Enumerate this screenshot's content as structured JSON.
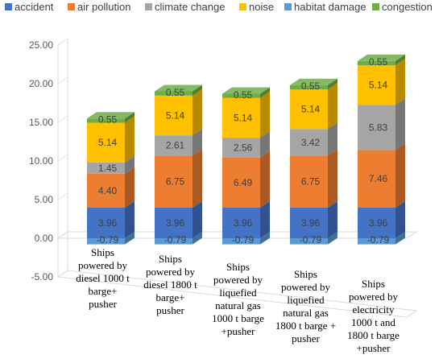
{
  "chart_data": {
    "type": "bar",
    "stacked": true,
    "three_d": true,
    "legend_position": "top",
    "grid": false,
    "ylim": [
      -5,
      25
    ],
    "y_ticks": [
      "-5.00",
      "0.00",
      "5.00",
      "10.00",
      "15.00",
      "20.00",
      "25.00"
    ],
    "categories": [
      [
        "Ships",
        "powered by",
        "diesel 1000 t",
        "barge+",
        "pusher"
      ],
      [
        "Ships",
        "powered by",
        "diesel 1800 t",
        "barge+",
        "pusher"
      ],
      [
        "Ships",
        "powered by",
        "liquefied",
        "natural gas",
        "1000 t barge",
        "+pusher"
      ],
      [
        "Ships",
        "powered by",
        "liquefied",
        "natural gas",
        "1800 t barge +",
        "pusher"
      ],
      [
        "Ships",
        "powered by",
        "electricity",
        "1000 t and",
        "1800 t barge",
        "+pusher"
      ]
    ],
    "series": [
      {
        "name": "habitat damage",
        "color": "#5b9bd5",
        "values": [
          -0.79,
          -0.79,
          -0.79,
          -0.79,
          -0.79
        ],
        "labels": [
          "-0.79",
          "-0.79",
          "-0.79",
          "-0.79",
          "-0.79"
        ]
      },
      {
        "name": "accident",
        "color": "#4472c4",
        "values": [
          3.96,
          3.96,
          3.96,
          3.96,
          3.96
        ],
        "labels": [
          "3.96",
          "3.96",
          "3.96",
          "3.96",
          "3.96"
        ]
      },
      {
        "name": "air pollution",
        "color": "#ed7d31",
        "values": [
          4.4,
          6.75,
          6.49,
          6.75,
          7.46
        ],
        "labels": [
          "4.40",
          "6.75",
          "6.49",
          "6.75",
          "7.46"
        ]
      },
      {
        "name": "climate change",
        "color": "#a5a5a5",
        "values": [
          1.45,
          2.61,
          2.56,
          3.42,
          5.83
        ],
        "labels": [
          "1.45",
          "2.61",
          "2.56",
          "3.42",
          "5.83"
        ]
      },
      {
        "name": "noise",
        "color": "#ffc000",
        "values": [
          5.14,
          5.14,
          5.14,
          5.14,
          5.14
        ],
        "labels": [
          "5.14",
          "5.14",
          "5.14",
          "5.14",
          "5.14"
        ]
      },
      {
        "name": "congestion",
        "color": "#70ad47",
        "values": [
          0.55,
          0.55,
          0.55,
          0.55,
          0.55
        ],
        "labels": [
          "0.55",
          "0.55",
          "0.55",
          "0.55",
          "0.55"
        ]
      }
    ],
    "legend": [
      {
        "name": "accident",
        "color": "#4472c4"
      },
      {
        "name": "air pollution",
        "color": "#ed7d31"
      },
      {
        "name": "climate change",
        "color": "#a5a5a5"
      },
      {
        "name": "noise",
        "color": "#ffc000"
      },
      {
        "name": "habitat damage",
        "color": "#5b9bd5"
      },
      {
        "name": "congestion",
        "color": "#70ad47"
      }
    ]
  }
}
